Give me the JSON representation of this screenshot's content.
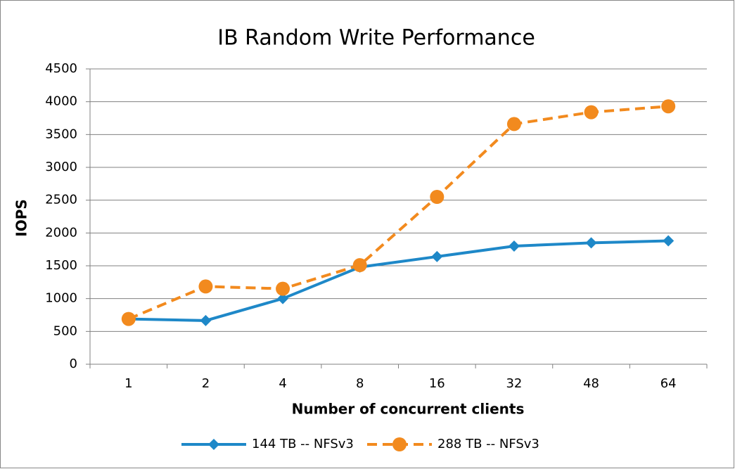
{
  "chart_data": {
    "type": "line",
    "title": "IB Random Write Performance",
    "x_label": "Number of concurrent clients",
    "y_label": "IOPS",
    "categories": [
      "1",
      "2",
      "4",
      "8",
      "16",
      "32",
      "48",
      "64"
    ],
    "series": [
      {
        "name": "144 TB -- NFSv3",
        "color": "#1e88c8",
        "line_style": "solid",
        "marker": "diamond",
        "values": [
          690,
          665,
          1000,
          1480,
          1640,
          1800,
          1850,
          1880
        ]
      },
      {
        "name": "288 TB -- NFSv3",
        "color": "#f28a1e",
        "line_style": "dashed",
        "marker": "circle",
        "values": [
          690,
          1185,
          1150,
          1510,
          2550,
          3660,
          3840,
          3930
        ]
      }
    ],
    "ylim": [
      0,
      4500
    ],
    "yticks": [
      0,
      500,
      1000,
      1500,
      2000,
      2500,
      3000,
      3500,
      4000,
      4500
    ],
    "grid": true,
    "legend": "bottom"
  }
}
